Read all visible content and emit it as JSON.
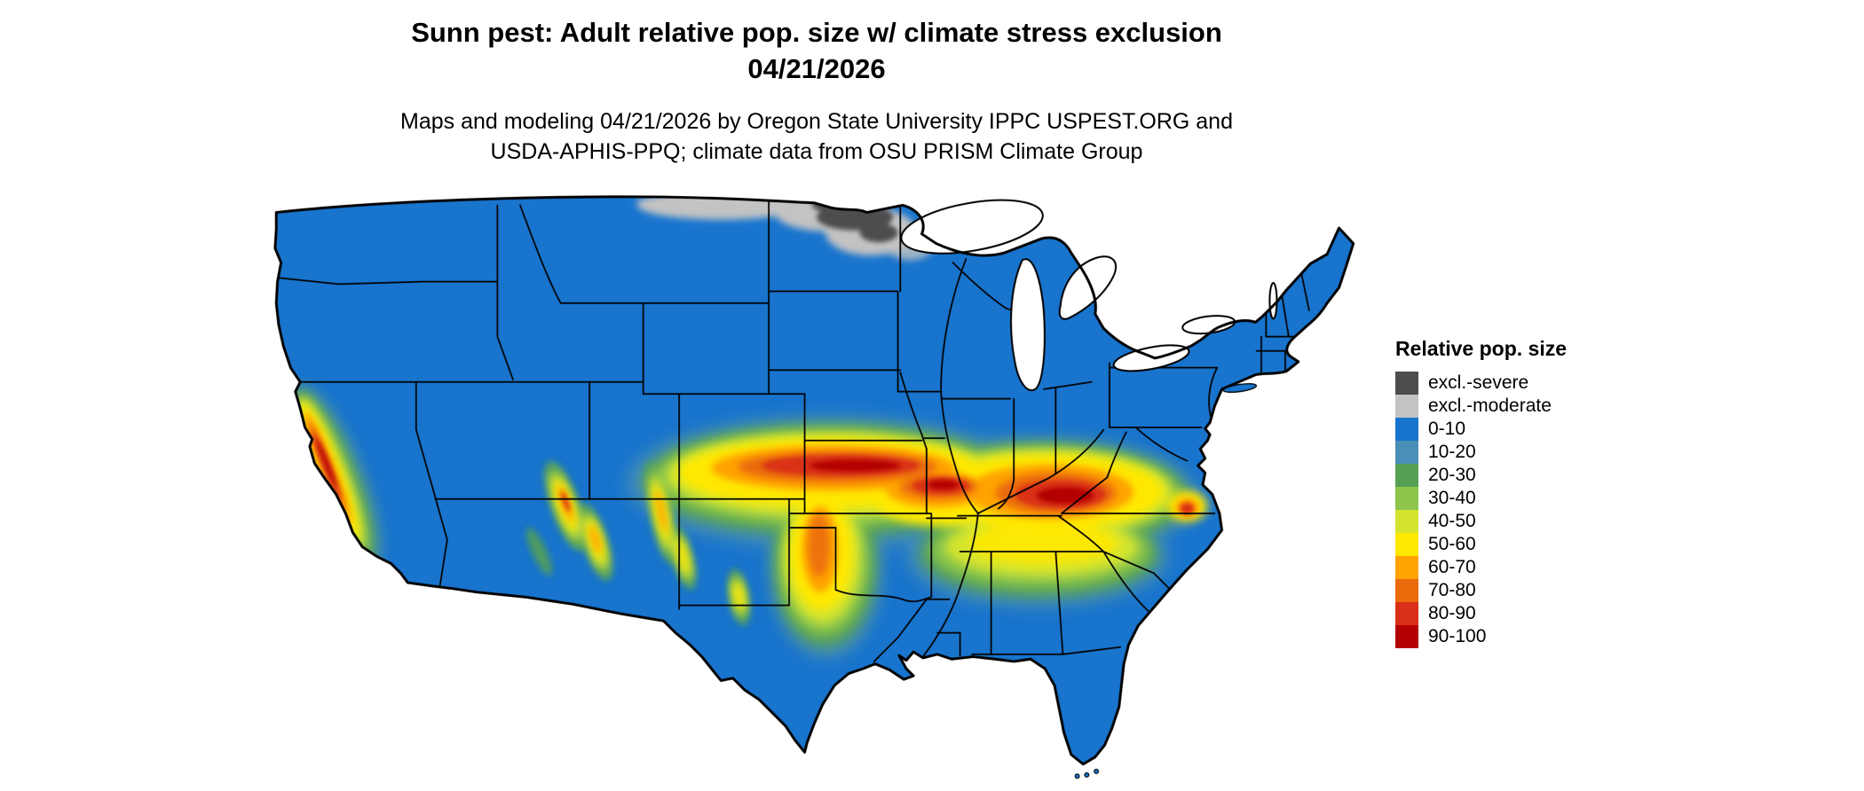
{
  "title": {
    "line1": "Sunn pest: Adult relative pop. size w/ climate stress exclusion",
    "line2": "04/21/2026"
  },
  "caption": {
    "line1": "Maps and modeling 04/21/2026 by Oregon State University IPPC USPEST.ORG and",
    "line2": "USDA-APHIS-PPQ; climate data from OSU PRISM Climate Group"
  },
  "legend": {
    "title": "Relative pop. size",
    "items": [
      {
        "label": "excl.-severe",
        "color": "#4d4d4d"
      },
      {
        "label": "excl.-moderate",
        "color": "#c3c3c3"
      },
      {
        "label": "0-10",
        "color": "#1874cd"
      },
      {
        "label": "10-20",
        "color": "#4a8fb8"
      },
      {
        "label": "20-30",
        "color": "#55a054"
      },
      {
        "label": "30-40",
        "color": "#8dc64b"
      },
      {
        "label": "40-50",
        "color": "#d4e42e"
      },
      {
        "label": "50-60",
        "color": "#ffe800"
      },
      {
        "label": "60-70",
        "color": "#ffa300"
      },
      {
        "label": "70-80",
        "color": "#ea6a0c"
      },
      {
        "label": "80-90",
        "color": "#d93018"
      },
      {
        "label": "90-100",
        "color": "#b30000"
      }
    ]
  },
  "map": {
    "region": "Contiguous United States",
    "base_color": "#1874cd",
    "border_color": "#000000",
    "background": "#ffffff"
  }
}
